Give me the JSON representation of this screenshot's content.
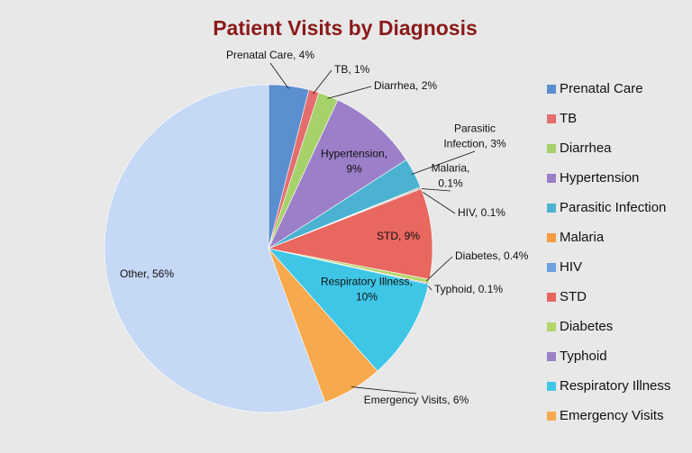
{
  "chart_data": {
    "type": "pie",
    "title": "Patient Visits by Diagnosis",
    "categories": [
      "Prenatal Care",
      "TB",
      "Diarrhea",
      "Hypertension",
      "Parasitic Infection",
      "Malaria",
      "HIV",
      "STD",
      "Diabetes",
      "Typhoid",
      "Respiratory Illness",
      "Emergency Visits",
      "Other"
    ],
    "values": [
      4,
      1,
      2,
      9,
      3,
      0.1,
      0.1,
      9,
      0.4,
      0.1,
      10,
      6,
      56
    ],
    "value_labels": [
      [
        "Prenatal Care, 4%"
      ],
      [
        "TB, 1%"
      ],
      [
        "Diarrhea, 2%"
      ],
      [
        "Hypertension,",
        "9%"
      ],
      [
        "Parasitic",
        "Infection, 3%"
      ],
      [
        "Malaria,",
        "0.1%"
      ],
      [
        "HIV, 0.1%"
      ],
      [
        "STD, 9%"
      ],
      [
        "Diabetes, 0.4%"
      ],
      [
        "Typhoid, 0.1%"
      ],
      [
        "Respiratory Illness,",
        "10%"
      ],
      [
        "Emergency Visits, 6%"
      ],
      [
        "Other, 56%"
      ]
    ],
    "colors": [
      "#5b8fd0",
      "#e46d6d",
      "#a6d16b",
      "#9b7fc8",
      "#4bb3d1",
      "#f59b42",
      "#6ea0dd",
      "#e8675f",
      "#b5d56a",
      "#9d82c8",
      "#3fc6e6",
      "#f7a94e",
      "#c5d8f5"
    ],
    "legend": {
      "position": "right",
      "omit": [
        "Other"
      ]
    }
  }
}
